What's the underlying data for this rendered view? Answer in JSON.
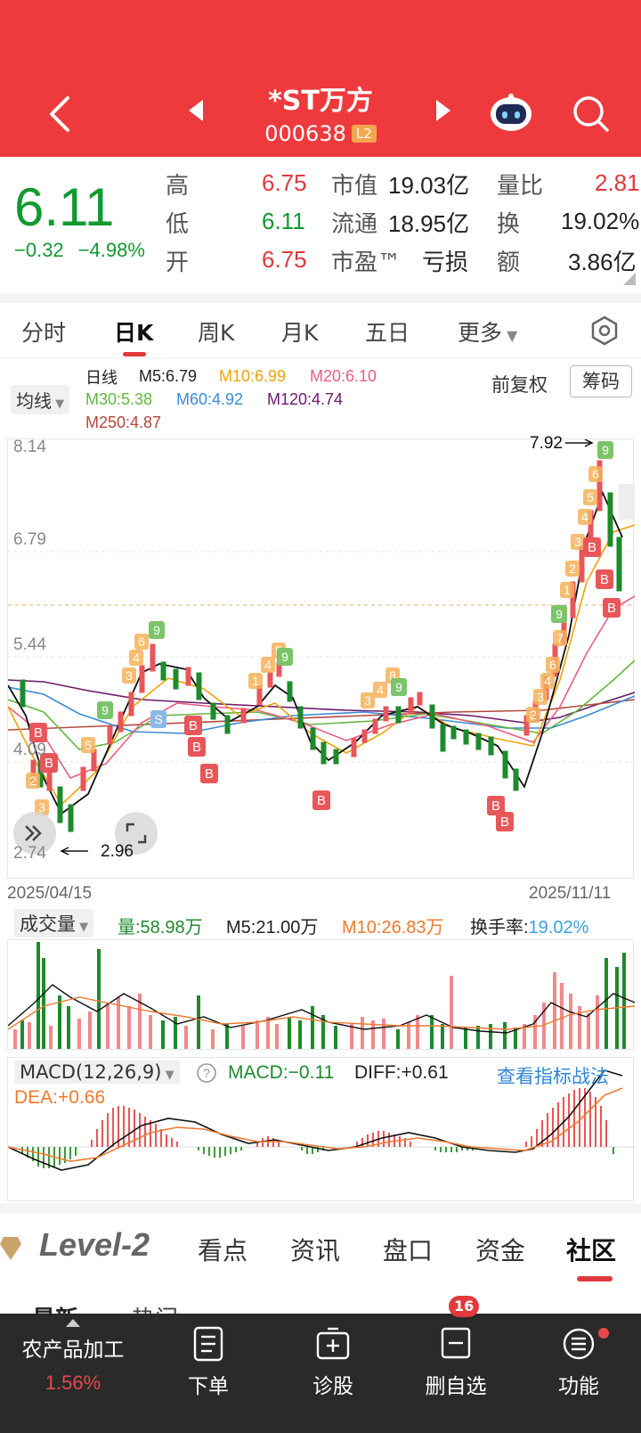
{
  "header": {
    "stock_name": "*ST万方",
    "stock_code": "000638",
    "level_badge": "L2",
    "accent_color": "#ee3a3d"
  },
  "quote": {
    "price": "6.11",
    "change": "−0.32",
    "change_pct": "−4.98%",
    "high_label": "高",
    "high": "6.75",
    "low_label": "低",
    "low": "6.11",
    "open_label": "开",
    "open": "6.75",
    "mcap_label": "市值",
    "mcap": "19.03亿",
    "float_label": "流通",
    "float": "18.95亿",
    "pe_label": "市盈™",
    "pe": "亏损",
    "vol_ratio_label": "量比",
    "vol_ratio": "2.81",
    "turnover_label": "换",
    "turnover": "19.02%",
    "amount_label": "额",
    "amount": "3.86亿"
  },
  "period_tabs": [
    "分时",
    "日K",
    "周K",
    "月K",
    "五日",
    "更多"
  ],
  "ma_legend": {
    "selector": "均线",
    "daily": "日线",
    "m5": "M5:6.79",
    "m10": "M10:6.99",
    "m20": "M20:6.10",
    "m30": "M30:5.38",
    "m60": "M60:4.92",
    "m120": "M120:4.74",
    "m250": "M250:4.87",
    "adjust": "前复权",
    "chip_button": "筹码"
  },
  "kline": {
    "y_labels": [
      "8.14",
      "6.79",
      "5.44",
      "4.09",
      "2.74"
    ],
    "high_mark": "7.92",
    "low_mark": "2.96",
    "start_date": "2025/04/15",
    "end_date": "2025/11/11"
  },
  "volume": {
    "selector": "成交量",
    "vol": "量:58.98万",
    "m5": "M5:21.00万",
    "m10": "M10:26.83万",
    "turnover_label": "换手率:",
    "turnover": "19.02%"
  },
  "macd": {
    "selector": "MACD(12,26,9)",
    "macd": "MACD:−0.11",
    "diff": "DIFF:+0.61",
    "dea": "DEA:+0.66",
    "link": "查看指标战法"
  },
  "info_tabs": {
    "level2": "Level-2",
    "tabs": [
      "看点",
      "资讯",
      "盘口",
      "资金",
      "社区"
    ]
  },
  "partial_tabs": [
    "最新",
    "热门"
  ],
  "bottom_bar": {
    "sector": "农产品加工",
    "sector_change": "1.56%",
    "order": "下单",
    "diagnose": "诊股",
    "remove_watch": "删自选",
    "functions": "功能",
    "message_badge": "16"
  }
}
